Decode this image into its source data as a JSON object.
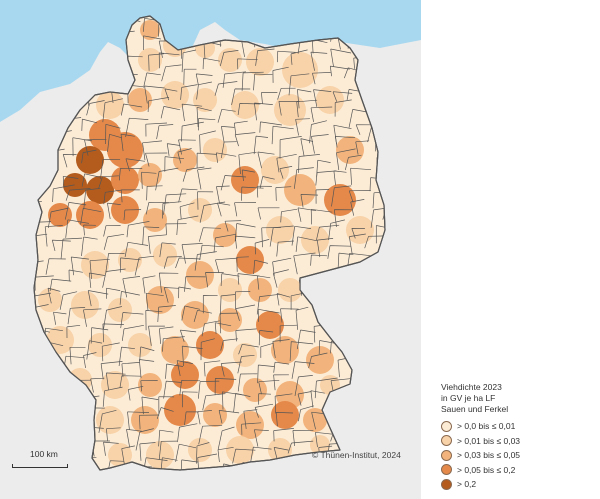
{
  "legend": {
    "title_lines": [
      "Viehdichte 2023",
      "in GV je ha LF",
      "Sauen und Ferkel"
    ],
    "classes": [
      {
        "label": "> 0,0 bis ≤ 0,01",
        "color": "#fcecd6"
      },
      {
        "label": "> 0,01 bis ≤ 0,03",
        "color": "#f8d2a8"
      },
      {
        "label": "> 0,03 bis ≤ 0,05",
        "color": "#f2b47c"
      },
      {
        "label": "> 0,05 bis ≤ 0,2",
        "color": "#e5894a"
      },
      {
        "label": "> 0,2",
        "color": "#b35c1e"
      }
    ]
  },
  "scale_bar": {
    "label": "100 km"
  },
  "copyright": "© Thünen-Institut, 2024",
  "colors": {
    "sea": "#a8d8ef",
    "neighbor_land": "#ececec",
    "border": "#555555",
    "background": "#ffffff"
  }
}
